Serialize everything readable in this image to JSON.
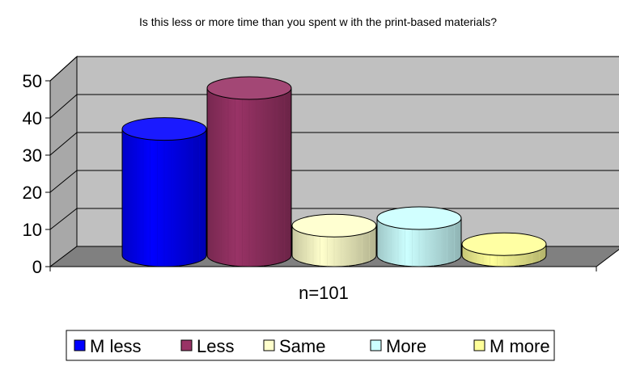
{
  "chart_data": {
    "type": "bar",
    "title": "Is this less or more time than you spent w ith the print-based materials?",
    "xlabel": "n=101",
    "ylabel": "",
    "categories": [
      "n=101"
    ],
    "series": [
      {
        "name": "M less",
        "values": [
          34
        ],
        "color": "#0000ff"
      },
      {
        "name": "Less",
        "values": [
          45
        ],
        "color": "#993366"
      },
      {
        "name": "Same",
        "values": [
          8
        ],
        "color": "#ffffcc"
      },
      {
        "name": "More",
        "values": [
          10
        ],
        "color": "#ccffff"
      },
      {
        "name": "M more",
        "values": [
          3
        ],
        "color": "#ffff99"
      }
    ],
    "ylim": [
      0,
      50
    ],
    "yticks": [
      0,
      10,
      20,
      30,
      40,
      50
    ],
    "grid": true,
    "shape": "cylinder-3d",
    "legend_position": "bottom",
    "wall_color": "#c0c0c0",
    "floor_color": "#808080"
  }
}
